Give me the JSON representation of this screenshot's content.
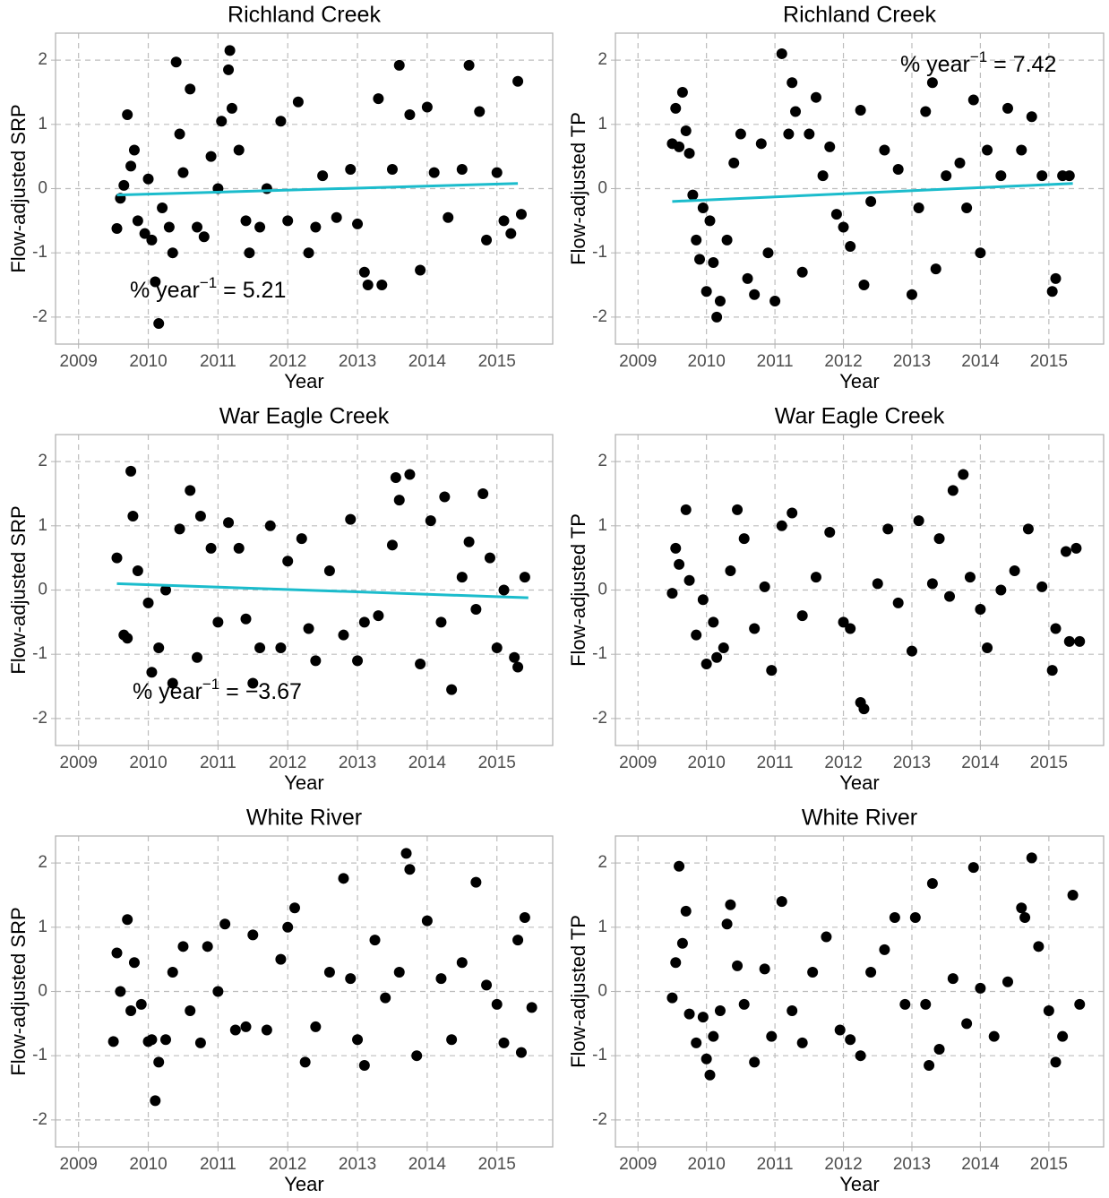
{
  "chart_data": [
    {
      "type": "scatter",
      "title": "Richland Creek",
      "xlabel": "Year",
      "ylabel": "Flow-adjusted SRP",
      "xlim": [
        2008.67,
        2015.8
      ],
      "ylim": [
        -2.42,
        2.42
      ],
      "xticks": [
        2009,
        2010,
        2011,
        2012,
        2013,
        2014,
        2015
      ],
      "yticks": [
        -2,
        -1,
        0,
        1,
        2
      ],
      "grid": true,
      "color": "#000000",
      "x": [
        2009.55,
        2009.6,
        2009.65,
        2009.7,
        2009.75,
        2009.8,
        2009.85,
        2009.95,
        2010.0,
        2010.05,
        2010.1,
        2010.15,
        2010.2,
        2010.3,
        2010.35,
        2010.4,
        2010.45,
        2010.5,
        2010.6,
        2010.7,
        2010.8,
        2010.9,
        2011.0,
        2011.05,
        2011.15,
        2011.17,
        2011.2,
        2011.3,
        2011.4,
        2011.45,
        2011.6,
        2011.7,
        2011.9,
        2012.0,
        2012.15,
        2012.3,
        2012.4,
        2012.5,
        2012.7,
        2012.9,
        2013.0,
        2013.1,
        2013.15,
        2013.3,
        2013.35,
        2013.5,
        2013.6,
        2013.75,
        2013.9,
        2014.0,
        2014.1,
        2014.3,
        2014.5,
        2014.6,
        2014.75,
        2014.85,
        2015.0,
        2015.1,
        2015.2,
        2015.3,
        2015.35
      ],
      "values": [
        -0.62,
        -0.15,
        0.05,
        1.15,
        0.35,
        0.6,
        -0.5,
        -0.7,
        0.15,
        -0.8,
        -1.45,
        -2.1,
        -0.3,
        -0.6,
        -1.0,
        1.97,
        0.85,
        0.25,
        1.55,
        -0.6,
        -0.75,
        0.5,
        0.0,
        1.05,
        1.85,
        2.15,
        1.25,
        0.6,
        -0.5,
        -1.0,
        -0.6,
        0.0,
        1.05,
        -0.5,
        1.35,
        -1.0,
        -0.6,
        0.2,
        -0.45,
        0.3,
        -0.55,
        -1.3,
        -1.5,
        1.4,
        -1.5,
        0.3,
        1.92,
        1.15,
        -1.27,
        1.27,
        0.25,
        -0.45,
        0.3,
        1.92,
        1.2,
        -0.8,
        0.25,
        -0.5,
        -0.7,
        1.67,
        -0.4
      ],
      "trend": {
        "color": "#1bbccc",
        "x": [
          2009.55,
          2015.3
        ],
        "values": [
          -0.1,
          0.08
        ]
      },
      "annotation": {
        "text": "% year",
        "exponent": "−1",
        "tail": " = 5.21"
      }
    },
    {
      "type": "scatter",
      "title": "Richland Creek",
      "xlabel": "Year",
      "ylabel": "Flow-adjusted TP",
      "xlim": [
        2008.67,
        2015.8
      ],
      "ylim": [
        -2.42,
        2.42
      ],
      "xticks": [
        2009,
        2010,
        2011,
        2012,
        2013,
        2014,
        2015
      ],
      "yticks": [
        -2,
        -1,
        0,
        1,
        2
      ],
      "grid": true,
      "color": "#000000",
      "x": [
        2009.5,
        2009.55,
        2009.6,
        2009.65,
        2009.7,
        2009.75,
        2009.8,
        2009.85,
        2009.9,
        2009.95,
        2010.0,
        2010.05,
        2010.1,
        2010.15,
        2010.2,
        2010.3,
        2010.4,
        2010.5,
        2010.6,
        2010.7,
        2010.8,
        2010.9,
        2011.0,
        2011.1,
        2011.2,
        2011.25,
        2011.3,
        2011.4,
        2011.5,
        2011.6,
        2011.7,
        2011.8,
        2011.9,
        2012.0,
        2012.1,
        2012.25,
        2012.3,
        2012.4,
        2012.6,
        2012.8,
        2013.0,
        2013.1,
        2013.2,
        2013.3,
        2013.35,
        2013.5,
        2013.7,
        2013.8,
        2013.9,
        2014.0,
        2014.1,
        2014.3,
        2014.4,
        2014.6,
        2014.75,
        2014.9,
        2015.05,
        2015.1,
        2015.2,
        2015.3
      ],
      "values": [
        0.7,
        1.25,
        0.65,
        1.5,
        0.9,
        0.55,
        -0.1,
        -0.8,
        -1.1,
        -0.3,
        -1.6,
        -0.5,
        -1.15,
        -2.0,
        -1.75,
        -0.8,
        0.4,
        0.85,
        -1.4,
        -1.65,
        0.7,
        -1.0,
        -1.75,
        2.1,
        0.85,
        1.65,
        1.2,
        -1.3,
        0.85,
        1.42,
        0.2,
        0.65,
        -0.4,
        -0.6,
        -0.9,
        1.22,
        -1.5,
        -0.2,
        0.6,
        0.3,
        -1.65,
        -0.3,
        1.2,
        1.65,
        -1.25,
        0.2,
        0.4,
        -0.3,
        1.38,
        -1.0,
        0.6,
        0.2,
        1.25,
        0.6,
        1.12,
        0.2,
        -1.6,
        -1.4,
        0.2,
        0.2
      ],
      "trend": {
        "color": "#1bbccc",
        "x": [
          2009.5,
          2015.35
        ],
        "values": [
          -0.2,
          0.08
        ]
      },
      "annotation": {
        "text": "% year",
        "exponent": "−1",
        "tail": " = 7.42"
      }
    },
    {
      "type": "scatter",
      "title": "War Eagle Creek",
      "xlabel": "Year",
      "ylabel": "Flow-adjusted SRP",
      "xlim": [
        2008.67,
        2015.8
      ],
      "ylim": [
        -2.42,
        2.42
      ],
      "xticks": [
        2009,
        2010,
        2011,
        2012,
        2013,
        2014,
        2015
      ],
      "yticks": [
        -2,
        -1,
        0,
        1,
        2
      ],
      "grid": true,
      "color": "#000000",
      "x": [
        2009.55,
        2009.65,
        2009.7,
        2009.75,
        2009.78,
        2009.85,
        2010.0,
        2010.05,
        2010.15,
        2010.25,
        2010.35,
        2010.45,
        2010.6,
        2010.7,
        2010.75,
        2010.9,
        2011.0,
        2011.15,
        2011.3,
        2011.4,
        2011.5,
        2011.6,
        2011.75,
        2011.9,
        2012.0,
        2012.2,
        2012.3,
        2012.4,
        2012.6,
        2012.8,
        2012.9,
        2013.0,
        2013.1,
        2013.3,
        2013.5,
        2013.55,
        2013.6,
        2013.75,
        2013.9,
        2014.05,
        2014.2,
        2014.25,
        2014.35,
        2014.5,
        2014.6,
        2014.7,
        2014.8,
        2014.9,
        2015.0,
        2015.1,
        2015.25,
        2015.3,
        2015.4
      ],
      "values": [
        0.5,
        -0.7,
        -0.75,
        1.85,
        1.15,
        0.3,
        -0.2,
        -1.28,
        -0.9,
        0.0,
        -1.45,
        0.95,
        1.55,
        -1.05,
        1.15,
        0.65,
        -0.5,
        1.05,
        0.65,
        -0.45,
        -1.45,
        -0.9,
        1.0,
        -0.9,
        0.45,
        0.8,
        -0.6,
        -1.1,
        0.3,
        -0.7,
        1.1,
        -1.1,
        -0.5,
        -0.4,
        0.7,
        1.75,
        1.4,
        1.8,
        -1.15,
        1.08,
        -0.5,
        1.45,
        -1.55,
        0.2,
        0.75,
        -0.3,
        1.5,
        0.5,
        -0.9,
        0.0,
        -1.05,
        -1.2,
        0.2
      ],
      "trend": {
        "color": "#1bbccc",
        "x": [
          2009.55,
          2015.45
        ],
        "values": [
          0.1,
          -0.12
        ]
      },
      "annotation": {
        "text": "% year",
        "exponent": "−1",
        "tail": " = −3.67"
      }
    },
    {
      "type": "scatter",
      "title": "War Eagle Creek",
      "xlabel": "Year",
      "ylabel": "Flow-adjusted TP",
      "xlim": [
        2008.67,
        2015.8
      ],
      "ylim": [
        -2.42,
        2.42
      ],
      "xticks": [
        2009,
        2010,
        2011,
        2012,
        2013,
        2014,
        2015
      ],
      "yticks": [
        -2,
        -1,
        0,
        1,
        2
      ],
      "grid": true,
      "color": "#000000",
      "x": [
        2009.5,
        2009.55,
        2009.6,
        2009.7,
        2009.75,
        2009.85,
        2009.95,
        2010.0,
        2010.1,
        2010.15,
        2010.25,
        2010.35,
        2010.45,
        2010.55,
        2010.7,
        2010.85,
        2010.95,
        2011.1,
        2011.25,
        2011.4,
        2011.6,
        2011.8,
        2012.0,
        2012.1,
        2012.25,
        2012.3,
        2012.5,
        2012.65,
        2012.8,
        2013.0,
        2013.1,
        2013.3,
        2013.4,
        2013.55,
        2013.6,
        2013.75,
        2013.85,
        2014.0,
        2014.1,
        2014.3,
        2014.5,
        2014.7,
        2014.9,
        2015.05,
        2015.1,
        2015.25,
        2015.3,
        2015.4,
        2015.45
      ],
      "values": [
        -0.05,
        0.65,
        0.4,
        1.25,
        0.15,
        -0.7,
        -0.15,
        -1.15,
        -0.5,
        -1.05,
        -0.9,
        0.3,
        1.25,
        0.8,
        -0.6,
        0.05,
        -1.25,
        1.0,
        1.2,
        -0.4,
        0.2,
        0.9,
        -0.5,
        -0.6,
        -1.75,
        -1.85,
        0.1,
        0.95,
        -0.2,
        -0.95,
        1.08,
        0.1,
        0.8,
        -0.1,
        1.55,
        1.8,
        0.2,
        -0.3,
        -0.9,
        0.0,
        0.3,
        0.95,
        0.05,
        -1.25,
        -0.6,
        0.6,
        -0.8,
        0.65,
        -0.8
      ]
    },
    {
      "type": "scatter",
      "title": "White River",
      "xlabel": "Year",
      "ylabel": "Flow-adjusted SRP",
      "xlim": [
        2008.67,
        2015.8
      ],
      "ylim": [
        -2.42,
        2.42
      ],
      "xticks": [
        2009,
        2010,
        2011,
        2012,
        2013,
        2014,
        2015
      ],
      "yticks": [
        -2,
        -1,
        0,
        1,
        2
      ],
      "grid": true,
      "color": "#000000",
      "x": [
        2009.5,
        2009.55,
        2009.6,
        2009.7,
        2009.75,
        2009.8,
        2009.9,
        2010.0,
        2010.05,
        2010.1,
        2010.15,
        2010.25,
        2010.35,
        2010.5,
        2010.6,
        2010.75,
        2010.85,
        2011.0,
        2011.1,
        2011.25,
        2011.4,
        2011.5,
        2011.7,
        2011.9,
        2012.0,
        2012.1,
        2012.25,
        2012.4,
        2012.6,
        2012.8,
        2012.9,
        2013.0,
        2013.1,
        2013.25,
        2013.4,
        2013.6,
        2013.7,
        2013.75,
        2013.85,
        2014.0,
        2014.2,
        2014.35,
        2014.5,
        2014.7,
        2014.85,
        2015.0,
        2015.1,
        2015.3,
        2015.35,
        2015.4,
        2015.5
      ],
      "values": [
        -0.78,
        0.6,
        0.0,
        1.12,
        -0.3,
        0.45,
        -0.2,
        -0.78,
        -0.75,
        -1.7,
        -1.1,
        -0.75,
        0.3,
        0.7,
        -0.3,
        -0.8,
        0.7,
        0.0,
        1.05,
        -0.6,
        -0.55,
        0.88,
        -0.6,
        0.5,
        1.0,
        1.3,
        -1.1,
        -0.55,
        0.3,
        1.76,
        0.2,
        -0.75,
        -1.15,
        0.8,
        -0.1,
        0.3,
        2.15,
        1.9,
        -1.0,
        1.1,
        0.2,
        -0.75,
        0.45,
        1.7,
        0.1,
        -0.2,
        -0.8,
        0.8,
        -0.95,
        1.15,
        -0.25
      ]
    },
    {
      "type": "scatter",
      "title": "White River",
      "xlabel": "Year",
      "ylabel": "Flow-adjusted TP",
      "xlim": [
        2008.67,
        2015.8
      ],
      "ylim": [
        -2.42,
        2.42
      ],
      "xticks": [
        2009,
        2010,
        2011,
        2012,
        2013,
        2014,
        2015
      ],
      "yticks": [
        -2,
        -1,
        0,
        1,
        2
      ],
      "grid": true,
      "color": "#000000",
      "x": [
        2009.5,
        2009.55,
        2009.6,
        2009.65,
        2009.7,
        2009.75,
        2009.85,
        2009.95,
        2010.0,
        2010.05,
        2010.1,
        2010.2,
        2010.3,
        2010.35,
        2010.45,
        2010.55,
        2010.7,
        2010.85,
        2010.95,
        2011.1,
        2011.25,
        2011.4,
        2011.55,
        2011.75,
        2011.95,
        2012.1,
        2012.25,
        2012.4,
        2012.6,
        2012.75,
        2012.9,
        2013.05,
        2013.2,
        2013.25,
        2013.3,
        2013.4,
        2013.6,
        2013.8,
        2013.9,
        2014.0,
        2014.2,
        2014.4,
        2014.6,
        2014.65,
        2014.75,
        2014.85,
        2015.0,
        2015.1,
        2015.2,
        2015.35,
        2015.45
      ],
      "values": [
        -0.1,
        0.45,
        1.95,
        0.75,
        1.25,
        -0.35,
        -0.8,
        -0.4,
        -1.05,
        -1.3,
        -0.7,
        -0.3,
        1.05,
        1.35,
        0.4,
        -0.2,
        -1.1,
        0.35,
        -0.7,
        1.4,
        -0.3,
        -0.8,
        0.3,
        0.85,
        -0.6,
        -0.75,
        -1.0,
        0.3,
        0.65,
        1.15,
        -0.2,
        1.15,
        -0.2,
        -1.15,
        1.68,
        -0.9,
        0.2,
        -0.5,
        1.93,
        0.05,
        -0.7,
        0.15,
        1.3,
        1.15,
        2.08,
        0.7,
        -0.3,
        -1.1,
        -0.7,
        1.5,
        -0.2
      ]
    }
  ]
}
